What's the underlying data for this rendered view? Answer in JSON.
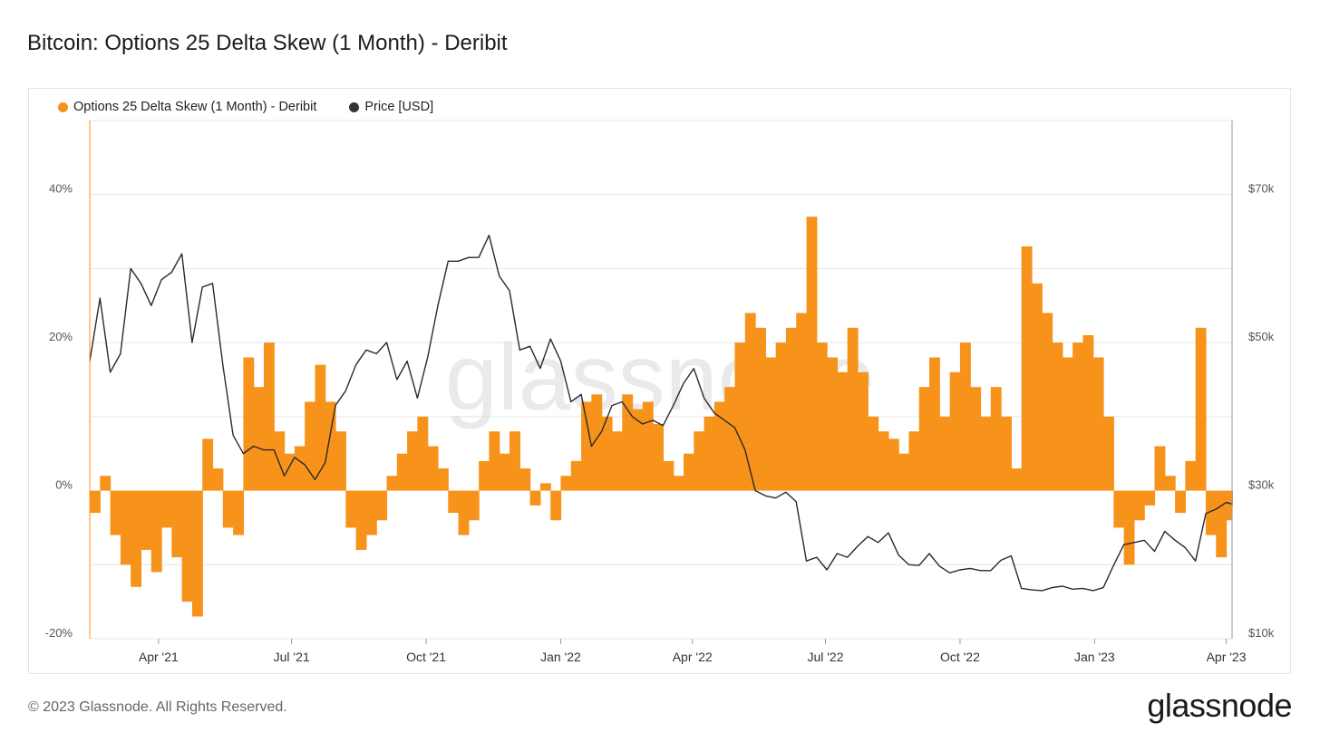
{
  "title": "Bitcoin: Options 25 Delta Skew (1 Month) - Deribit",
  "footer": "© 2023 Glassnode. All Rights Reserved.",
  "brand": "glassnode",
  "watermark": "glassnode",
  "colors": {
    "skew": "#f7931a",
    "price": "#2a2a2a",
    "grid": "#e6e6e6"
  },
  "legend": [
    {
      "label": "Options 25 Delta Skew (1 Month) - Deribit",
      "color": "#f7931a"
    },
    {
      "label": "Price [USD]",
      "color": "#333333"
    }
  ],
  "chart_data": {
    "type": "area",
    "x_axis": {
      "type": "date",
      "range": [
        "2021-02-13",
        "2023-04-05"
      ],
      "ticks": [
        {
          "date": "2021-04-01",
          "label": "Apr '21"
        },
        {
          "date": "2021-07-01",
          "label": "Jul '21"
        },
        {
          "date": "2021-10-01",
          "label": "Oct '21"
        },
        {
          "date": "2022-01-01",
          "label": "Jan '22"
        },
        {
          "date": "2022-04-01",
          "label": "Apr '22"
        },
        {
          "date": "2022-07-01",
          "label": "Jul '22"
        },
        {
          "date": "2022-10-01",
          "label": "Oct '22"
        },
        {
          "date": "2023-01-01",
          "label": "Jan '23"
        },
        {
          "date": "2023-04-01",
          "label": "Apr '23"
        }
      ]
    },
    "y_left": {
      "range": [
        -20,
        50
      ],
      "ticks": [
        -20,
        0,
        20,
        40
      ],
      "tick_labels": [
        "-20%",
        "0%",
        "20%",
        "40%"
      ]
    },
    "y_right": {
      "range": [
        10000,
        80000
      ],
      "ticks": [
        10000,
        30000,
        50000,
        70000
      ],
      "tick_labels": [
        "$10k",
        "$30k",
        "$50k",
        "$70k"
      ]
    },
    "grid": true,
    "legend_position": "top-left",
    "series": [
      {
        "name": "Options 25 Delta Skew (1 Month) - Deribit",
        "type": "area",
        "axis": "left",
        "unit": "%",
        "points": [
          [
            "2021-02-13",
            -3
          ],
          [
            "2021-02-20",
            2
          ],
          [
            "2021-02-27",
            -6
          ],
          [
            "2021-03-06",
            -10
          ],
          [
            "2021-03-13",
            -13
          ],
          [
            "2021-03-20",
            -8
          ],
          [
            "2021-03-27",
            -11
          ],
          [
            "2021-04-03",
            -5
          ],
          [
            "2021-04-10",
            -9
          ],
          [
            "2021-04-17",
            -15
          ],
          [
            "2021-04-24",
            -17
          ],
          [
            "2021-05-01",
            7
          ],
          [
            "2021-05-08",
            3
          ],
          [
            "2021-05-15",
            -5
          ],
          [
            "2021-05-22",
            -6
          ],
          [
            "2021-05-29",
            18
          ],
          [
            "2021-06-05",
            14
          ],
          [
            "2021-06-12",
            20
          ],
          [
            "2021-06-19",
            8
          ],
          [
            "2021-06-26",
            5
          ],
          [
            "2021-07-03",
            6
          ],
          [
            "2021-07-10",
            12
          ],
          [
            "2021-07-17",
            17
          ],
          [
            "2021-07-24",
            12
          ],
          [
            "2021-07-31",
            8
          ],
          [
            "2021-08-07",
            -5
          ],
          [
            "2021-08-14",
            -8
          ],
          [
            "2021-08-21",
            -6
          ],
          [
            "2021-08-28",
            -4
          ],
          [
            "2021-09-04",
            2
          ],
          [
            "2021-09-11",
            5
          ],
          [
            "2021-09-18",
            8
          ],
          [
            "2021-09-25",
            10
          ],
          [
            "2021-10-02",
            6
          ],
          [
            "2021-10-09",
            3
          ],
          [
            "2021-10-16",
            -3
          ],
          [
            "2021-10-23",
            -6
          ],
          [
            "2021-10-30",
            -4
          ],
          [
            "2021-11-06",
            4
          ],
          [
            "2021-11-13",
            8
          ],
          [
            "2021-11-20",
            5
          ],
          [
            "2021-11-27",
            8
          ],
          [
            "2021-12-04",
            3
          ],
          [
            "2021-12-11",
            -2
          ],
          [
            "2021-12-18",
            1
          ],
          [
            "2021-12-25",
            -4
          ],
          [
            "2022-01-01",
            2
          ],
          [
            "2022-01-08",
            4
          ],
          [
            "2022-01-15",
            12
          ],
          [
            "2022-01-22",
            13
          ],
          [
            "2022-01-29",
            10
          ],
          [
            "2022-02-05",
            8
          ],
          [
            "2022-02-12",
            13
          ],
          [
            "2022-02-19",
            11
          ],
          [
            "2022-02-26",
            12
          ],
          [
            "2022-03-05",
            9
          ],
          [
            "2022-03-12",
            4
          ],
          [
            "2022-03-19",
            2
          ],
          [
            "2022-03-26",
            5
          ],
          [
            "2022-04-02",
            8
          ],
          [
            "2022-04-09",
            10
          ],
          [
            "2022-04-16",
            12
          ],
          [
            "2022-04-23",
            14
          ],
          [
            "2022-04-30",
            20
          ],
          [
            "2022-05-07",
            24
          ],
          [
            "2022-05-14",
            22
          ],
          [
            "2022-05-21",
            18
          ],
          [
            "2022-05-28",
            20
          ],
          [
            "2022-06-04",
            22
          ],
          [
            "2022-06-11",
            24
          ],
          [
            "2022-06-18",
            37
          ],
          [
            "2022-06-25",
            20
          ],
          [
            "2022-07-02",
            18
          ],
          [
            "2022-07-09",
            16
          ],
          [
            "2022-07-16",
            22
          ],
          [
            "2022-07-23",
            16
          ],
          [
            "2022-07-30",
            10
          ],
          [
            "2022-08-06",
            8
          ],
          [
            "2022-08-13",
            7
          ],
          [
            "2022-08-20",
            5
          ],
          [
            "2022-08-27",
            8
          ],
          [
            "2022-09-03",
            14
          ],
          [
            "2022-09-10",
            18
          ],
          [
            "2022-09-17",
            10
          ],
          [
            "2022-09-24",
            16
          ],
          [
            "2022-10-01",
            20
          ],
          [
            "2022-10-08",
            14
          ],
          [
            "2022-10-15",
            10
          ],
          [
            "2022-10-22",
            14
          ],
          [
            "2022-10-29",
            10
          ],
          [
            "2022-11-05",
            3
          ],
          [
            "2022-11-12",
            33
          ],
          [
            "2022-11-19",
            28
          ],
          [
            "2022-11-26",
            24
          ],
          [
            "2022-12-03",
            20
          ],
          [
            "2022-12-10",
            18
          ],
          [
            "2022-12-17",
            20
          ],
          [
            "2022-12-24",
            21
          ],
          [
            "2022-12-31",
            18
          ],
          [
            "2023-01-07",
            10
          ],
          [
            "2023-01-14",
            -5
          ],
          [
            "2023-01-21",
            -10
          ],
          [
            "2023-01-28",
            -4
          ],
          [
            "2023-02-04",
            -2
          ],
          [
            "2023-02-11",
            6
          ],
          [
            "2023-02-18",
            2
          ],
          [
            "2023-02-25",
            -3
          ],
          [
            "2023-03-04",
            4
          ],
          [
            "2023-03-11",
            22
          ],
          [
            "2023-03-18",
            -6
          ],
          [
            "2023-03-25",
            -9
          ],
          [
            "2023-04-01",
            -4
          ],
          [
            "2023-04-05",
            -2
          ]
        ]
      },
      {
        "name": "Price [USD]",
        "type": "line",
        "axis": "right",
        "unit": "USD",
        "points": [
          [
            "2021-02-13",
            47500
          ],
          [
            "2021-02-20",
            56000
          ],
          [
            "2021-02-27",
            46000
          ],
          [
            "2021-03-06",
            48500
          ],
          [
            "2021-03-13",
            60000
          ],
          [
            "2021-03-20",
            58000
          ],
          [
            "2021-03-27",
            55000
          ],
          [
            "2021-04-03",
            58500
          ],
          [
            "2021-04-10",
            59500
          ],
          [
            "2021-04-17",
            62000
          ],
          [
            "2021-04-24",
            50000
          ],
          [
            "2021-05-01",
            57500
          ],
          [
            "2021-05-08",
            58000
          ],
          [
            "2021-05-15",
            47000
          ],
          [
            "2021-05-22",
            37500
          ],
          [
            "2021-05-29",
            35000
          ],
          [
            "2021-06-05",
            36000
          ],
          [
            "2021-06-12",
            35500
          ],
          [
            "2021-06-19",
            35500
          ],
          [
            "2021-06-26",
            32000
          ],
          [
            "2021-07-03",
            34500
          ],
          [
            "2021-07-10",
            33500
          ],
          [
            "2021-07-17",
            31500
          ],
          [
            "2021-07-24",
            33800
          ],
          [
            "2021-07-31",
            41500
          ],
          [
            "2021-08-07",
            43500
          ],
          [
            "2021-08-14",
            47000
          ],
          [
            "2021-08-21",
            49000
          ],
          [
            "2021-08-28",
            48500
          ],
          [
            "2021-09-04",
            50000
          ],
          [
            "2021-09-11",
            45000
          ],
          [
            "2021-09-18",
            47500
          ],
          [
            "2021-09-25",
            42500
          ],
          [
            "2021-10-02",
            48000
          ],
          [
            "2021-10-09",
            55000
          ],
          [
            "2021-10-16",
            61000
          ],
          [
            "2021-10-23",
            61000
          ],
          [
            "2021-10-30",
            61500
          ],
          [
            "2021-11-06",
            61500
          ],
          [
            "2021-11-13",
            64500
          ],
          [
            "2021-11-20",
            59000
          ],
          [
            "2021-11-27",
            57000
          ],
          [
            "2021-12-04",
            49000
          ],
          [
            "2021-12-11",
            49500
          ],
          [
            "2021-12-18",
            46500
          ],
          [
            "2021-12-25",
            50500
          ],
          [
            "2022-01-01",
            47500
          ],
          [
            "2022-01-08",
            42000
          ],
          [
            "2022-01-15",
            43000
          ],
          [
            "2022-01-22",
            36000
          ],
          [
            "2022-01-29",
            38000
          ],
          [
            "2022-02-05",
            41500
          ],
          [
            "2022-02-12",
            42000
          ],
          [
            "2022-02-19",
            40000
          ],
          [
            "2022-02-26",
            39000
          ],
          [
            "2022-03-05",
            39500
          ],
          [
            "2022-03-12",
            38800
          ],
          [
            "2022-03-19",
            41500
          ],
          [
            "2022-03-26",
            44500
          ],
          [
            "2022-04-02",
            46500
          ],
          [
            "2022-04-09",
            42500
          ],
          [
            "2022-04-16",
            40500
          ],
          [
            "2022-04-23",
            39500
          ],
          [
            "2022-04-30",
            38500
          ],
          [
            "2022-05-07",
            35500
          ],
          [
            "2022-05-14",
            30000
          ],
          [
            "2022-05-21",
            29300
          ],
          [
            "2022-05-28",
            29000
          ],
          [
            "2022-06-04",
            29800
          ],
          [
            "2022-06-11",
            28500
          ],
          [
            "2022-06-18",
            20500
          ],
          [
            "2022-06-25",
            21000
          ],
          [
            "2022-07-02",
            19300
          ],
          [
            "2022-07-09",
            21500
          ],
          [
            "2022-07-16",
            21000
          ],
          [
            "2022-07-23",
            22500
          ],
          [
            "2022-07-30",
            23800
          ],
          [
            "2022-08-06",
            23000
          ],
          [
            "2022-08-13",
            24300
          ],
          [
            "2022-08-20",
            21300
          ],
          [
            "2022-08-27",
            20000
          ],
          [
            "2022-09-03",
            19900
          ],
          [
            "2022-09-10",
            21500
          ],
          [
            "2022-09-17",
            19800
          ],
          [
            "2022-09-24",
            18900
          ],
          [
            "2022-10-01",
            19300
          ],
          [
            "2022-10-08",
            19500
          ],
          [
            "2022-10-15",
            19200
          ],
          [
            "2022-10-22",
            19200
          ],
          [
            "2022-10-29",
            20600
          ],
          [
            "2022-11-05",
            21200
          ],
          [
            "2022-11-12",
            16800
          ],
          [
            "2022-11-19",
            16600
          ],
          [
            "2022-11-26",
            16500
          ],
          [
            "2022-12-03",
            16900
          ],
          [
            "2022-12-10",
            17100
          ],
          [
            "2022-12-17",
            16700
          ],
          [
            "2022-12-24",
            16800
          ],
          [
            "2022-12-31",
            16500
          ],
          [
            "2023-01-07",
            16900
          ],
          [
            "2023-01-14",
            19900
          ],
          [
            "2023-01-21",
            22700
          ],
          [
            "2023-01-28",
            23000
          ],
          [
            "2023-02-04",
            23300
          ],
          [
            "2023-02-11",
            21800
          ],
          [
            "2023-02-18",
            24500
          ],
          [
            "2023-02-25",
            23300
          ],
          [
            "2023-03-04",
            22300
          ],
          [
            "2023-03-11",
            20500
          ],
          [
            "2023-03-18",
            26900
          ],
          [
            "2023-03-25",
            27500
          ],
          [
            "2023-04-01",
            28400
          ],
          [
            "2023-04-05",
            28200
          ]
        ]
      }
    ]
  }
}
